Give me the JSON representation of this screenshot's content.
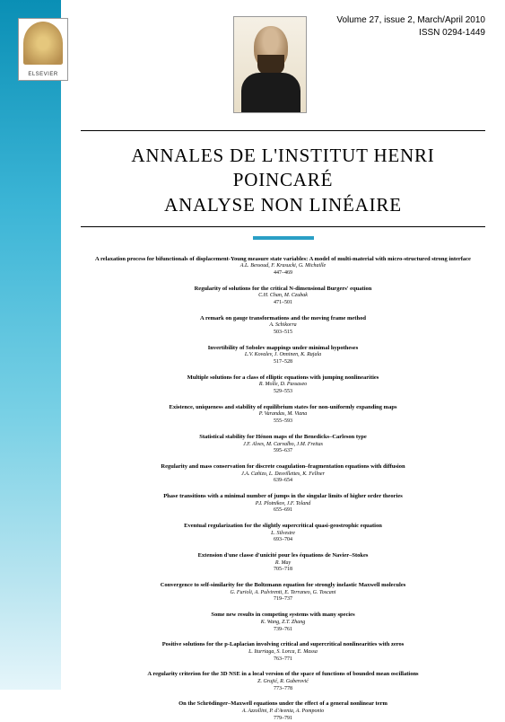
{
  "colors": {
    "gradient_top": "#0a8fb5",
    "gradient_bottom": "#e5f5fa",
    "underline": "#2a9fc5",
    "text": "#000000",
    "background": "#ffffff"
  },
  "publisher": "ELSEVIER",
  "issue": {
    "volume_line": "Volume 27, issue 2, March/April 2010",
    "issn_line": "ISSN 0294-1449"
  },
  "journal": {
    "line1": "ANNALES DE L'INSTITUT HENRI POINCARÉ",
    "line2": "ANALYSE NON LINÉAIRE"
  },
  "toc": [
    {
      "title": "A relaxation process for bifunctionals of displacement-Young measure state variables: A model of multi-material with micro-structured strong interface",
      "authors": "A.L. Bessoud, F. Krasucki, G. Michaille",
      "pages": "447–469"
    },
    {
      "title": "Regularity of solutions for the critical N-dimensional Burgers' equation",
      "authors": "C.H. Chan, M. Czubak",
      "pages": "471–501"
    },
    {
      "title": "A remark on gauge transformations and the moving frame method",
      "authors": "A. Schikorra",
      "pages": "503–515"
    },
    {
      "title": "Invertibility of Sobolev mappings under minimal hypotheses",
      "authors": "L.V. Kovalev, J. Onninen, K. Rajala",
      "pages": "517–528"
    },
    {
      "title": "Multiple solutions for a class of elliptic equations with jumping nonlinearities",
      "authors": "R. Molle, D. Passaseo",
      "pages": "529–553"
    },
    {
      "title": "Existence, uniqueness and stability of equilibrium states for non-uniformly expanding maps",
      "authors": "P. Varandas, M. Viana",
      "pages": "555–593"
    },
    {
      "title": "Statistical stability for Hénon maps of the Benedicks–Carleson type",
      "authors": "J.F. Alves, M. Carvalho, J.M. Freitas",
      "pages": "595–637"
    },
    {
      "title": "Regularity and mass conservation for discrete coagulation–fragmentation equations with diffusion",
      "authors": "J.A. Cañizo, L. Desvillettes, K. Fellner",
      "pages": "639–654"
    },
    {
      "title": "Phase transitions with a minimal number of jumps in the singular limits of higher order theories",
      "authors": "P.I. Plotnikov, J.F. Toland",
      "pages": "655–691"
    },
    {
      "title": "Eventual regularization for the slightly supercritical quasi-geostrophic equation",
      "authors": "L. Silvestre",
      "pages": "693–704"
    },
    {
      "title": "Extension d'une classe d'unicité pour les équations de Navier–Stokes",
      "authors": "R. May",
      "pages": "705–718"
    },
    {
      "title": "Convergence to self-similarity for the Boltzmann equation for strongly inelastic Maxwell molecules",
      "authors": "G. Furioli, A. Pulvirenti, E. Terraneo, G. Toscani",
      "pages": "719–737"
    },
    {
      "title": "Some new results in competing systems with many species",
      "authors": "K. Wang, Z.T. Zhang",
      "pages": "739–761"
    },
    {
      "title": "Positive solutions for the p-Laplacian involving critical and supercritical nonlinearities with zeros",
      "authors": "L. Iturriaga, S. Lorca, E. Massa",
      "pages": "763–771"
    },
    {
      "title": "A regularity criterion for the 3D NSE in a local version of the space of functions of bounded mean oscillations",
      "authors": "Z. Grujić, R. Guberović",
      "pages": "773–778"
    },
    {
      "title": "On the Schrödinger–Maxwell equations under the effect of a general nonlinear term",
      "authors": "A. Azzollini, P. d'Avenia, A. Pomponio",
      "pages": "779–791"
    }
  ]
}
